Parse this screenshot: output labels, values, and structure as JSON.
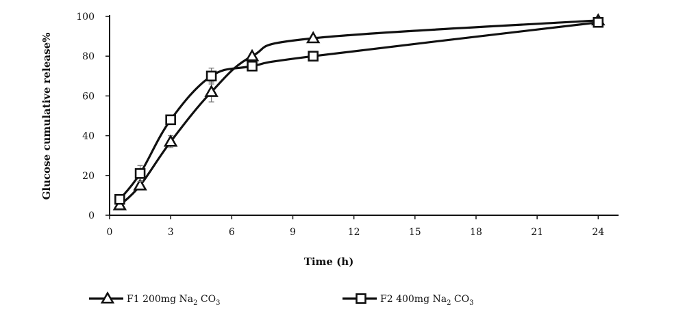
{
  "chart_data": {
    "type": "line",
    "xlabel": "Time (h)",
    "ylabel": "Glucose cumulative release%",
    "xlim": [
      0,
      25
    ],
    "ylim": [
      0,
      100
    ],
    "xticks": [
      0,
      3,
      6,
      9,
      12,
      15,
      18,
      21,
      24
    ],
    "yticks": [
      0,
      20,
      40,
      60,
      80,
      100
    ],
    "grid": false,
    "legend_position": "bottom",
    "series": [
      {
        "name": "F1 200mg Na2 CO3",
        "name_parts": {
          "prefix": "F1 200mg Na",
          "sub1": "2",
          "middle": " CO",
          "sub2": "3"
        },
        "marker": "triangle",
        "x": [
          0.5,
          1.5,
          3,
          5,
          7,
          10,
          24
        ],
        "y": [
          5,
          15,
          37,
          62,
          80,
          89,
          98
        ],
        "error": [
          0,
          1,
          3,
          5,
          1,
          1,
          1
        ]
      },
      {
        "name": "F2 400mg Na2 CO3",
        "name_parts": {
          "prefix": "F2 400mg Na",
          "sub1": "2",
          "middle": " CO",
          "sub2": "3"
        },
        "marker": "square",
        "x": [
          0.5,
          1.5,
          3,
          5,
          7,
          10,
          24
        ],
        "y": [
          8,
          21,
          48,
          70,
          75,
          80,
          97
        ],
        "error": [
          0,
          4,
          2,
          4,
          1,
          1,
          1
        ]
      }
    ]
  }
}
